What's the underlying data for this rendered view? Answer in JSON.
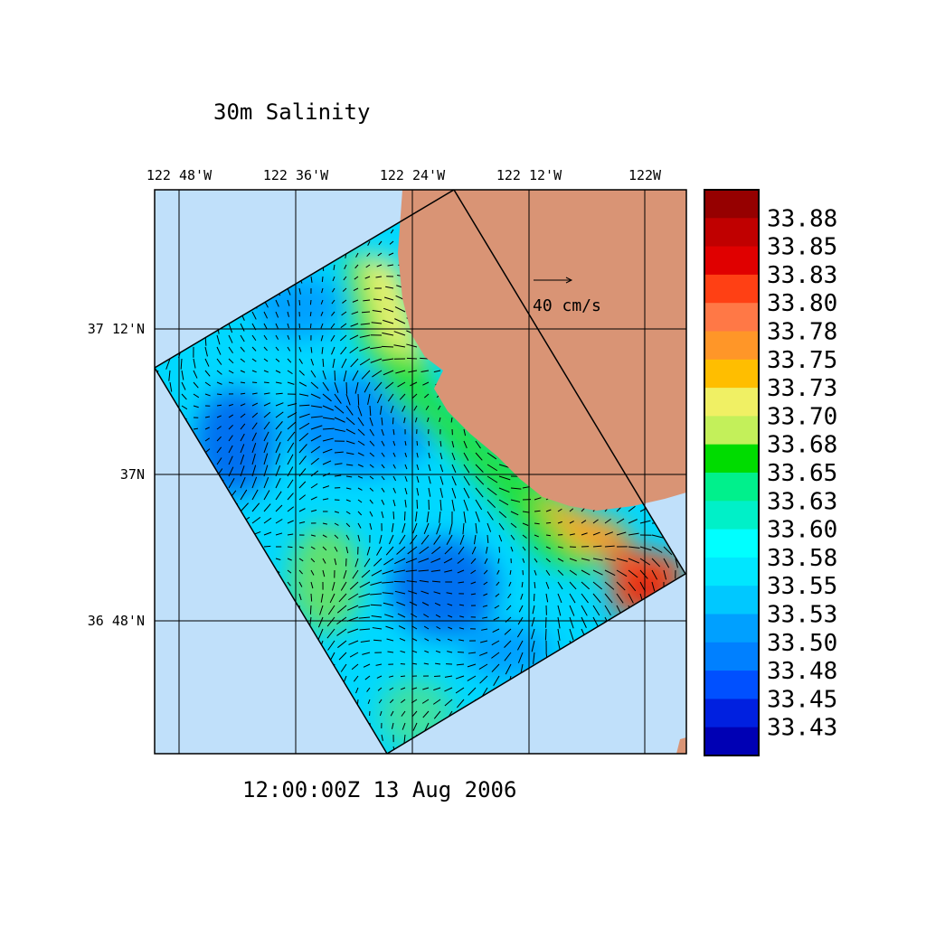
{
  "title": "30m Salinity",
  "x_labels": [
    "122 48'W",
    "122 36'W",
    "122 24'W",
    "122 12'W",
    "122W"
  ],
  "y_labels": [
    "37 12'N",
    "37N",
    "36 48'N"
  ],
  "timestamp": "12:00:00Z  13 Aug 2006",
  "vector_scale": "40 cm/s",
  "colorbar": {
    "levels": [
      33.88,
      33.85,
      33.83,
      {
        "value": 33.8,
        "label": "33.80"
      },
      33.78,
      33.75,
      33.73,
      {
        "value": 33.7,
        "label": "33.70"
      },
      33.68,
      33.65,
      33.63,
      {
        "value": 33.6,
        "label": "33.60"
      },
      33.58,
      33.55,
      33.53,
      {
        "value": 33.5,
        "label": "33.50"
      },
      33.48,
      33.45,
      33.43
    ],
    "colors": [
      "#960000",
      "#c00000",
      "#e00000",
      "#ff4014",
      "#ff7846",
      "#ff9628",
      "#ffbe00",
      "#f0f064",
      "#c3f05a",
      "#00dc00",
      "#00f08c",
      "#00f0c8",
      "#00ffff",
      "#00e6ff",
      "#00c8ff",
      "#00a0ff",
      "#0080ff",
      "#0050ff",
      "#0020e0",
      "#0000b4"
    ]
  }
}
